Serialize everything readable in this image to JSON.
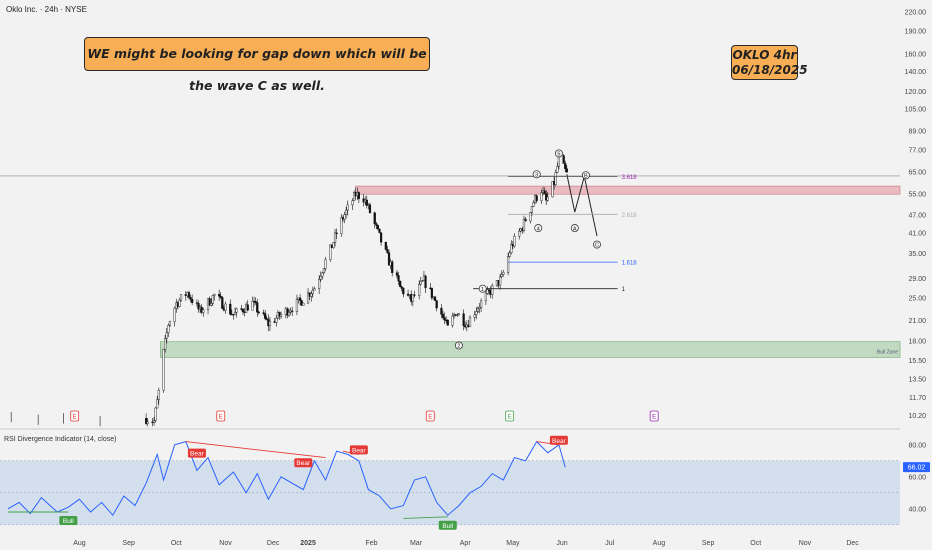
{
  "header": {
    "symbol_line": "Oklo Inc. · 24h · NYSE"
  },
  "notes": {
    "main": "WE might be looking for gap down which will be the wave C as well.",
    "tag_line1": "OKLO 4hr",
    "tag_line2": "06/18/2025"
  },
  "colors": {
    "bear": "#e53935",
    "bull": "#43a047",
    "rsi": "#2962ff",
    "zone": "#9cc79a",
    "resist": "#e5a8b0",
    "fib_purple": "#9c27b0",
    "fib_blue": "#2962ff"
  },
  "chart_data": [
    {
      "type": "candlestick",
      "title": "Oklo Inc. · 24h · NYSE",
      "yscale": "log",
      "ylim": [
        9.5,
        232
      ],
      "y_ticks": [
        "220.00",
        "190.00",
        "160.00",
        "140.00",
        "120.00",
        "105.00",
        "89.00",
        "77.00",
        "65.00",
        "55.00",
        "47.00",
        "41.00",
        "35.00",
        "29.00",
        "25.00",
        "21.00",
        "18.00",
        "15.50",
        "13.50",
        "11.70",
        "10.20"
      ],
      "x_ticks": [
        "Aug",
        "Sep",
        "Oct",
        "Nov",
        "Dec",
        "2025",
        "Feb",
        "Mar",
        "Apr",
        "May",
        "Jun",
        "Jul",
        "Aug",
        "Sep",
        "Oct",
        "Nov",
        "Dec"
      ],
      "price_path": [
        {
          "x": "2024-09-26",
          "y": 10.0
        },
        {
          "x": "2024-10-01",
          "y": 9.8
        },
        {
          "x": "2024-10-04",
          "y": 12.2
        },
        {
          "x": "2024-10-07",
          "y": 16.5
        },
        {
          "x": "2024-10-10",
          "y": 20.5
        },
        {
          "x": "2024-10-15",
          "y": 24.0
        },
        {
          "x": "2024-10-22",
          "y": 26.0
        },
        {
          "x": "2024-10-30",
          "y": 22.5
        },
        {
          "x": "2024-11-08",
          "y": 25.5
        },
        {
          "x": "2024-11-20",
          "y": 22.0
        },
        {
          "x": "2024-12-02",
          "y": 24.0
        },
        {
          "x": "2024-12-12",
          "y": 20.5
        },
        {
          "x": "2024-12-20",
          "y": 22.0
        },
        {
          "x": "2025-01-02",
          "y": 24.5
        },
        {
          "x": "2025-01-10",
          "y": 27.0
        },
        {
          "x": "2025-01-20",
          "y": 36.0
        },
        {
          "x": "2025-01-27",
          "y": 45.0
        },
        {
          "x": "2025-02-05",
          "y": 55.0
        },
        {
          "x": "2025-02-10",
          "y": 53.5
        },
        {
          "x": "2025-02-14",
          "y": 48.0
        },
        {
          "x": "2025-02-24",
          "y": 35.0
        },
        {
          "x": "2025-03-05",
          "y": 27.0
        },
        {
          "x": "2025-03-12",
          "y": 24.5
        },
        {
          "x": "2025-03-20",
          "y": 28.5
        },
        {
          "x": "2025-03-28",
          "y": 24.0
        },
        {
          "x": "2025-04-04",
          "y": 19.8
        },
        {
          "x": "2025-04-09",
          "y": 22.5
        },
        {
          "x": "2025-04-16",
          "y": 20.5
        },
        {
          "x": "2025-04-22",
          "y": 23.0
        },
        {
          "x": "2025-04-30",
          "y": 26.0
        },
        {
          "x": "2025-05-08",
          "y": 29.0
        },
        {
          "x": "2025-05-14",
          "y": 37.0
        },
        {
          "x": "2025-05-21",
          "y": 43.0
        },
        {
          "x": "2025-05-28",
          "y": 52.0
        },
        {
          "x": "2025-06-02",
          "y": 57.0
        },
        {
          "x": "2025-06-05",
          "y": 52.0
        },
        {
          "x": "2025-06-10",
          "y": 60.0
        },
        {
          "x": "2025-06-13",
          "y": 72.0
        },
        {
          "x": "2025-06-18",
          "y": 64.0
        }
      ],
      "projection_path": [
        {
          "x": "2025-06-18",
          "y": 64.0
        },
        {
          "x": "2025-06-23",
          "y": 48.0
        },
        {
          "x": "2025-06-29",
          "y": 63.0
        },
        {
          "x": "2025-07-07",
          "y": 40.0
        }
      ],
      "wave_labels": [
        {
          "label": "1",
          "x": "2025-04-26",
          "y": 26.8,
          "style": "arrow"
        },
        {
          "label": "2",
          "x": "2025-04-11",
          "y": 17.4
        },
        {
          "label": "3",
          "x": "2025-05-30",
          "y": 64.0
        },
        {
          "label": "4",
          "x": "2025-05-31",
          "y": 42.5
        },
        {
          "label": "5",
          "x": "2025-06-13",
          "y": 75.0
        },
        {
          "label": "A",
          "x": "2025-06-23",
          "y": 42.5
        },
        {
          "label": "B",
          "x": "2025-06-30",
          "y": 63.5
        },
        {
          "label": "C",
          "x": "2025-07-07",
          "y": 37.5
        }
      ],
      "fib_levels": [
        {
          "label": "1",
          "value": 26.8
        },
        {
          "label": "1.618",
          "value": 32.8
        },
        {
          "label": "2.618",
          "value": 47.2
        },
        {
          "label": "3.618",
          "value": 63.0
        }
      ],
      "zones": [
        {
          "label": "Bull Zone",
          "from": 15.9,
          "to": 17.9
        },
        {
          "label": "",
          "from": 55.0,
          "to": 58.5
        }
      ],
      "horizontal_line": 63.2,
      "earnings_markers": [
        {
          "label": "E",
          "x": "2024-08-12"
        },
        {
          "label": "E",
          "x": "2024-11-12"
        },
        {
          "label": "E",
          "x": "2025-03-24"
        },
        {
          "label": "E",
          "x": "2025-05-13"
        },
        {
          "label": "E",
          "x": "2025-08-12"
        }
      ]
    },
    {
      "type": "line",
      "title": "RSI Divergence Indicator (14, close)",
      "ylim": [
        28,
        88
      ],
      "y_ticks": [
        "80.00",
        "60.00",
        "40.00"
      ],
      "last_value": "66.02",
      "overbought": 70,
      "oversold": 30,
      "midline": 50,
      "values": [
        {
          "x": "2024-07-01",
          "y": 40
        },
        {
          "x": "2024-07-08",
          "y": 44
        },
        {
          "x": "2024-07-15",
          "y": 37
        },
        {
          "x": "2024-07-22",
          "y": 47
        },
        {
          "x": "2024-08-01",
          "y": 38
        },
        {
          "x": "2024-08-08",
          "y": 41
        },
        {
          "x": "2024-08-15",
          "y": 46
        },
        {
          "x": "2024-08-22",
          "y": 38
        },
        {
          "x": "2024-08-29",
          "y": 44
        },
        {
          "x": "2024-09-05",
          "y": 36
        },
        {
          "x": "2024-09-12",
          "y": 48
        },
        {
          "x": "2024-09-19",
          "y": 42
        },
        {
          "x": "2024-09-26",
          "y": 56
        },
        {
          "x": "2024-10-03",
          "y": 74
        },
        {
          "x": "2024-10-07",
          "y": 58
        },
        {
          "x": "2024-10-14",
          "y": 80
        },
        {
          "x": "2024-10-21",
          "y": 82
        },
        {
          "x": "2024-10-28",
          "y": 64
        },
        {
          "x": "2024-11-04",
          "y": 72
        },
        {
          "x": "2024-11-11",
          "y": 55
        },
        {
          "x": "2024-11-20",
          "y": 63
        },
        {
          "x": "2024-11-28",
          "y": 50
        },
        {
          "x": "2024-12-05",
          "y": 62
        },
        {
          "x": "2024-12-12",
          "y": 46
        },
        {
          "x": "2024-12-20",
          "y": 60
        },
        {
          "x": "2025-01-03",
          "y": 52
        },
        {
          "x": "2025-01-10",
          "y": 70
        },
        {
          "x": "2025-01-17",
          "y": 58
        },
        {
          "x": "2025-01-24",
          "y": 76
        },
        {
          "x": "2025-01-31",
          "y": 74
        },
        {
          "x": "2025-02-07",
          "y": 70
        },
        {
          "x": "2025-02-13",
          "y": 52
        },
        {
          "x": "2025-02-20",
          "y": 48
        },
        {
          "x": "2025-02-27",
          "y": 40
        },
        {
          "x": "2025-03-07",
          "y": 42
        },
        {
          "x": "2025-03-14",
          "y": 58
        },
        {
          "x": "2025-03-21",
          "y": 60
        },
        {
          "x": "2025-03-28",
          "y": 44
        },
        {
          "x": "2025-04-04",
          "y": 36
        },
        {
          "x": "2025-04-11",
          "y": 42
        },
        {
          "x": "2025-04-18",
          "y": 50
        },
        {
          "x": "2025-04-25",
          "y": 54
        },
        {
          "x": "2025-05-02",
          "y": 62
        },
        {
          "x": "2025-05-09",
          "y": 58
        },
        {
          "x": "2025-05-16",
          "y": 72
        },
        {
          "x": "2025-05-23",
          "y": 70
        },
        {
          "x": "2025-05-30",
          "y": 82
        },
        {
          "x": "2025-06-06",
          "y": 75
        },
        {
          "x": "2025-06-13",
          "y": 80
        },
        {
          "x": "2025-06-17",
          "y": 66
        }
      ],
      "divergence_labels": [
        {
          "label": "Bear",
          "type": "bear",
          "x": "2024-10-28",
          "y": 72
        },
        {
          "label": "Bear",
          "type": "bear",
          "x": "2025-01-03",
          "y": 66
        },
        {
          "label": "Bear",
          "type": "bear",
          "x": "2025-02-07",
          "y": 74
        },
        {
          "label": "Bear",
          "type": "bear",
          "x": "2025-06-13",
          "y": 80
        },
        {
          "label": "Bull",
          "type": "bull",
          "x": "2024-08-08",
          "y": 38
        },
        {
          "label": "Bull",
          "type": "bull",
          "x": "2025-04-04",
          "y": 35
        }
      ]
    }
  ]
}
